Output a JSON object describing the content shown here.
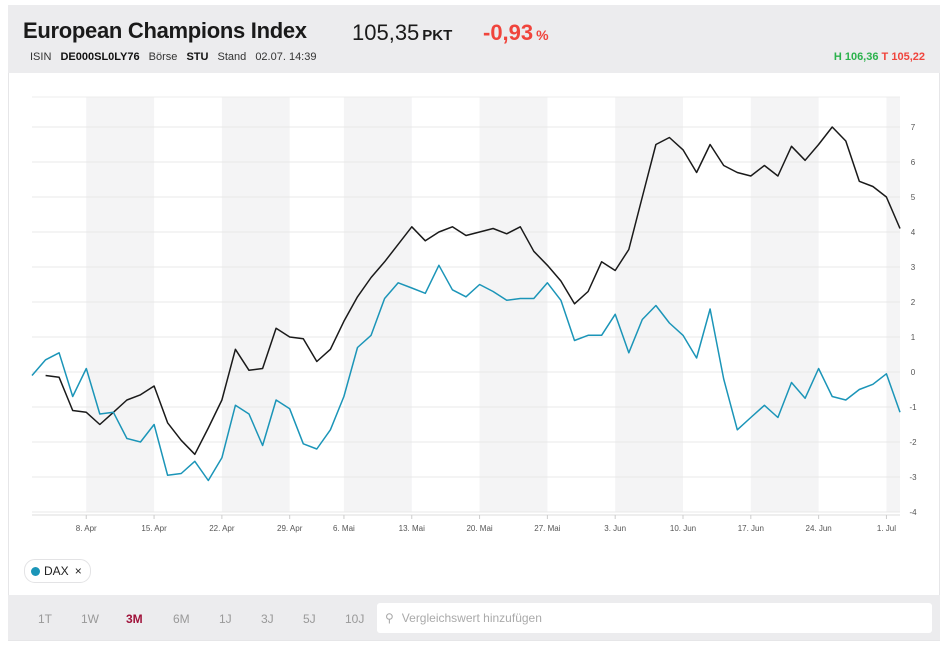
{
  "header": {
    "title": "European Champions Index",
    "price": "105,35",
    "price_unit": "PKT",
    "change": "-0,93",
    "change_unit": "%",
    "isin_label": "ISIN",
    "isin": "DE000SL0LY76",
    "exchange_label": "Börse",
    "exchange": "STU",
    "stand_label": "Stand",
    "stand": "02.07. 14:39",
    "high_label": "H",
    "high": "106,36",
    "low_label": "T",
    "low": "105,22"
  },
  "colors": {
    "main_series": "#1a1a1a",
    "dax_series": "#1b95b8",
    "negative": "#f0443c",
    "positive": "#2bb24c",
    "active_range": "#a0123a"
  },
  "chart_data": {
    "type": "line",
    "ylim": [
      -4,
      7.85
    ],
    "yticks": [
      7,
      6,
      5,
      4,
      3,
      2,
      1,
      0,
      -1,
      -2,
      -3,
      -4
    ],
    "y_axis_position": "right",
    "grid": true,
    "x": [
      "02.04.",
      "03.04.",
      "04.04.",
      "05.04.",
      "08.04.",
      "09.04.",
      "10.04.",
      "11.04.",
      "12.04.",
      "15.04.",
      "16.04.",
      "17.04.",
      "18.04.",
      "19.04.",
      "22.04.",
      "23.04.",
      "24.04.",
      "25.04.",
      "26.04.",
      "29.04.",
      "30.04.",
      "02.05.",
      "03.05.",
      "06.05.",
      "07.05.",
      "08.05.",
      "09.05.",
      "10.05.",
      "13.05.",
      "14.05.",
      "15.05.",
      "16.05.",
      "17.05.",
      "20.05.",
      "21.05.",
      "22.05.",
      "23.05.",
      "24.05.",
      "27.05.",
      "28.05.",
      "29.05.",
      "30.05.",
      "31.05.",
      "03.06.",
      "04.06.",
      "05.06.",
      "06.06.",
      "07.06.",
      "10.06.",
      "11.06.",
      "12.06.",
      "13.06.",
      "14.06.",
      "17.06.",
      "18.06.",
      "19.06.",
      "20.06.",
      "21.06.",
      "24.06.",
      "25.06.",
      "26.06.",
      "27.06.",
      "28.06.",
      "01.07.",
      "02.07."
    ],
    "xticks": [
      {
        "label": "8. Apr",
        "x": "08.04."
      },
      {
        "label": "15. Apr",
        "x": "15.04."
      },
      {
        "label": "22. Apr",
        "x": "22.04."
      },
      {
        "label": "29. Apr",
        "x": "29.04."
      },
      {
        "label": "6. Mai",
        "x": "06.05."
      },
      {
        "label": "13. Mai",
        "x": "13.05."
      },
      {
        "label": "20. Mai",
        "x": "20.05."
      },
      {
        "label": "27. Mai",
        "x": "27.05."
      },
      {
        "label": "3. Jun",
        "x": "03.06."
      },
      {
        "label": "10. Jun",
        "x": "10.06."
      },
      {
        "label": "17. Jun",
        "x": "17.06."
      },
      {
        "label": "24. Jun",
        "x": "24.06."
      },
      {
        "label": "1. Jul",
        "x": "01.07."
      }
    ],
    "series": [
      {
        "key": "main",
        "values": [
          null,
          -0.1,
          -0.15,
          -1.1,
          -1.15,
          -1.5,
          -1.15,
          -0.8,
          -0.65,
          -0.4,
          -1.45,
          -1.95,
          -2.35,
          -1.6,
          -0.8,
          0.65,
          0.05,
          0.1,
          1.25,
          1.0,
          0.95,
          0.3,
          0.65,
          1.45,
          2.15,
          2.7,
          3.15,
          3.65,
          4.15,
          3.75,
          4.0,
          4.15,
          3.9,
          4.0,
          4.1,
          3.95,
          4.15,
          3.45,
          3.05,
          2.6,
          1.95,
          2.3,
          3.15,
          2.9,
          3.5,
          5.0,
          6.5,
          6.7,
          6.35,
          5.7,
          6.5,
          5.9,
          5.7,
          5.6,
          5.9,
          5.6,
          6.45,
          6.05,
          6.5,
          7.0,
          6.6,
          5.45,
          5.3,
          5.0,
          4.1
        ]
      },
      {
        "key": "dax",
        "name": "DAX",
        "values": [
          -0.1,
          0.35,
          0.55,
          -0.7,
          0.1,
          -1.2,
          -1.15,
          -1.9,
          -2.0,
          -1.5,
          -2.95,
          -2.9,
          -2.55,
          -3.1,
          -2.45,
          -0.95,
          -1.2,
          -2.1,
          -0.8,
          -1.05,
          -2.05,
          -2.2,
          -1.65,
          -0.7,
          0.7,
          1.05,
          2.1,
          2.55,
          2.4,
          2.25,
          3.05,
          2.35,
          2.15,
          2.5,
          2.3,
          2.05,
          2.1,
          2.1,
          2.55,
          2.05,
          0.9,
          1.05,
          1.05,
          1.65,
          0.55,
          1.5,
          1.9,
          1.4,
          1.05,
          0.4,
          1.8,
          -0.2,
          -1.65,
          -1.3,
          -0.95,
          -1.3,
          -0.3,
          -0.75,
          0.1,
          -0.7,
          -0.8,
          -0.5,
          -0.35,
          -0.05,
          -1.15
        ]
      }
    ]
  },
  "legend": {
    "items": [
      {
        "label": "DAX",
        "remove": "×"
      }
    ]
  },
  "ranges": [
    {
      "label": "1T",
      "active": false
    },
    {
      "label": "1W",
      "active": false
    },
    {
      "label": "3M",
      "active": true
    },
    {
      "label": "6M",
      "active": false
    },
    {
      "label": "1J",
      "active": false
    },
    {
      "label": "3J",
      "active": false
    },
    {
      "label": "5J",
      "active": false
    },
    {
      "label": "10J",
      "active": false
    }
  ],
  "search": {
    "placeholder": "Vergleichswert hinzufügen",
    "value": "",
    "icon": "search-icon"
  }
}
